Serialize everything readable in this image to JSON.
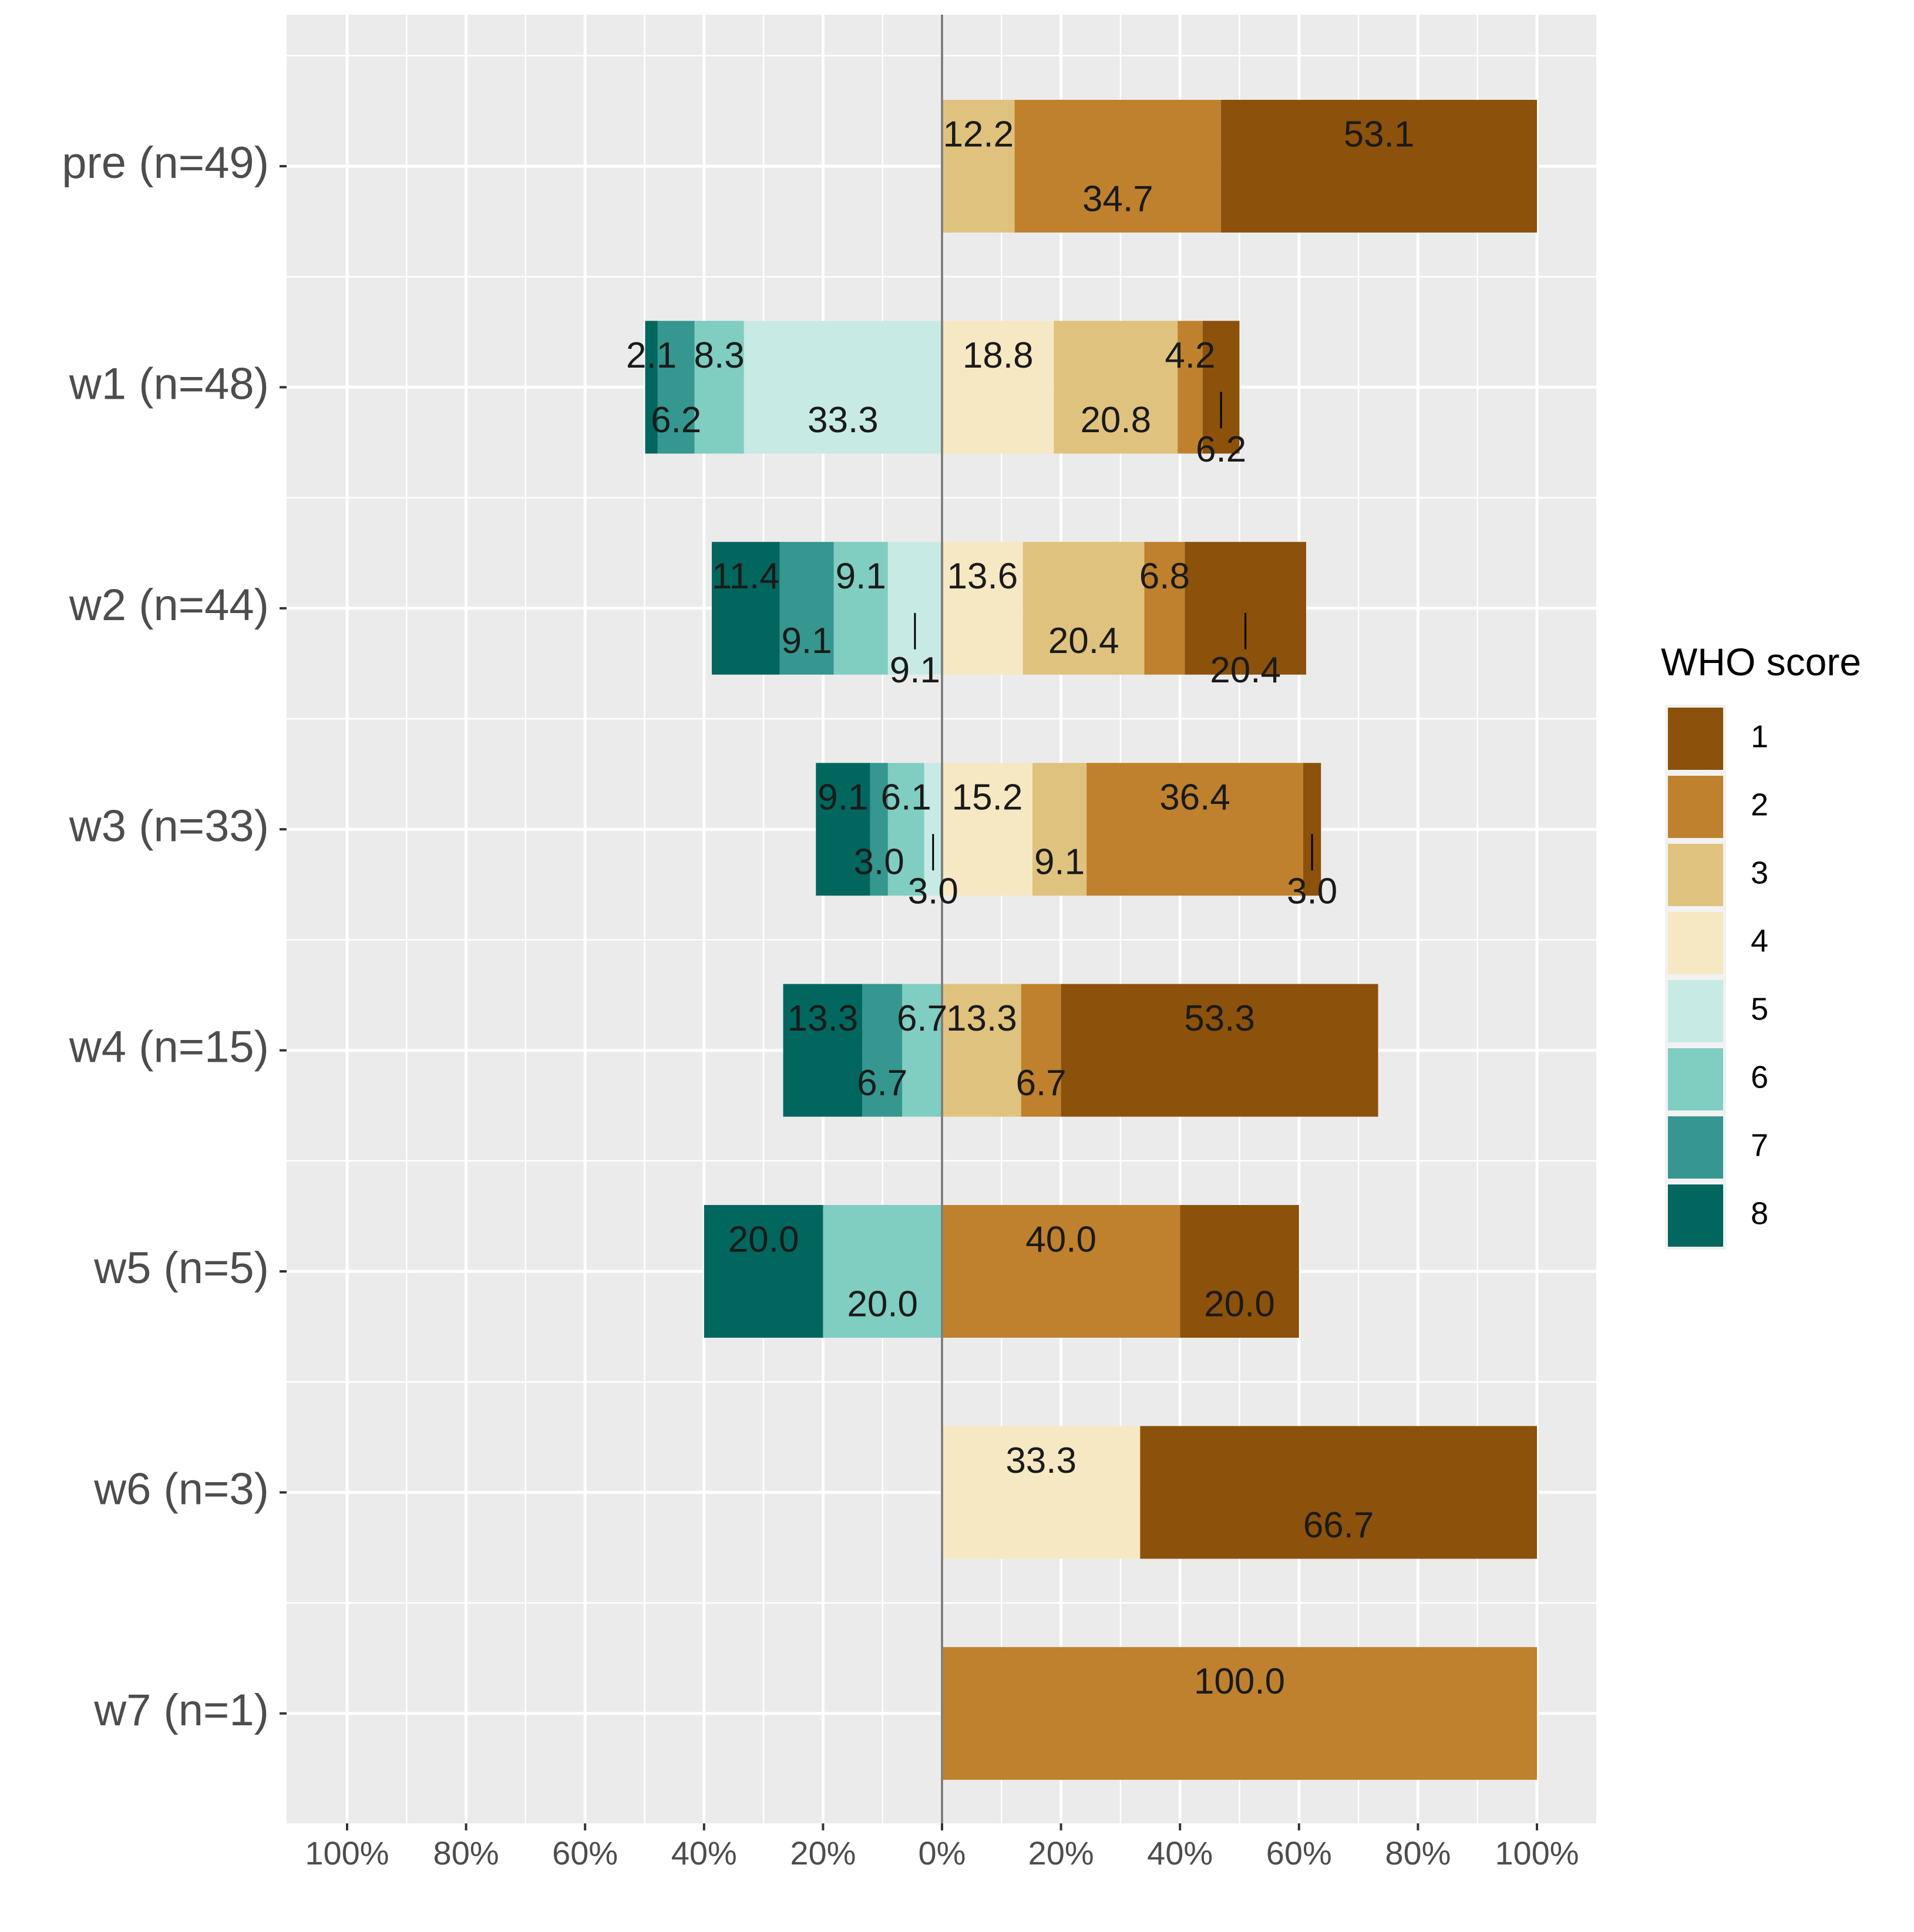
{
  "chart_data": {
    "type": "bar",
    "orientation": "horizontal",
    "stacking": "diverging",
    "title": "",
    "xlabel": "",
    "ylabel": "",
    "xlim": [
      -100,
      100
    ],
    "x_ticks": [
      -100,
      -80,
      -60,
      -40,
      -20,
      0,
      20,
      40,
      60,
      80,
      100
    ],
    "x_tick_labels": [
      "100%",
      "80%",
      "60%",
      "40%",
      "20%",
      "0%",
      "20%",
      "40%",
      "60%",
      "80%",
      "100%"
    ],
    "categories": [
      "pre (n=49)",
      "w1 (n=48)",
      "w2 (n=44)",
      "w3 (n=33)",
      "w4 (n=15)",
      "w5 (n=5)",
      "w6 (n=3)",
      "w7 (n=1)"
    ],
    "legend": {
      "title": "WHO score",
      "position": "right",
      "entries": [
        {
          "label": "1",
          "color": "#8C510A"
        },
        {
          "label": "2",
          "color": "#BF812D"
        },
        {
          "label": "3",
          "color": "#DFC27D"
        },
        {
          "label": "4",
          "color": "#F6E8C3"
        },
        {
          "label": "5",
          "color": "#C7EAE5"
        },
        {
          "label": "6",
          "color": "#80CDC1"
        },
        {
          "label": "7",
          "color": "#35978F"
        },
        {
          "label": "8",
          "color": "#01665E"
        }
      ]
    },
    "positive_order": [
      "4",
      "3",
      "2",
      "1"
    ],
    "negative_order": [
      "5",
      "6",
      "7",
      "8"
    ],
    "series": [
      {
        "name": "1",
        "values": [
          53.1,
          6.2,
          20.4,
          3.0,
          53.3,
          20.0,
          66.7,
          0
        ]
      },
      {
        "name": "2",
        "values": [
          34.7,
          4.2,
          6.8,
          36.4,
          6.7,
          40.0,
          0,
          100.0
        ]
      },
      {
        "name": "3",
        "values": [
          12.2,
          20.8,
          20.4,
          9.1,
          13.3,
          0,
          0,
          0
        ]
      },
      {
        "name": "4",
        "values": [
          0,
          18.8,
          13.6,
          15.2,
          0,
          0,
          33.3,
          0
        ]
      },
      {
        "name": "5",
        "values": [
          0,
          33.3,
          9.1,
          3.0,
          0,
          0,
          0,
          0
        ]
      },
      {
        "name": "6",
        "values": [
          0,
          8.3,
          9.1,
          6.1,
          6.7,
          20.0,
          0,
          0
        ]
      },
      {
        "name": "7",
        "values": [
          0,
          6.2,
          9.1,
          3.0,
          6.7,
          0,
          0,
          0
        ]
      },
      {
        "name": "8",
        "values": [
          0,
          2.1,
          11.4,
          9.1,
          13.3,
          20.0,
          0,
          0
        ]
      }
    ],
    "data_labels": [
      {
        "category": "pre (n=49)",
        "score": "3",
        "text": "12.2"
      },
      {
        "category": "pre (n=49)",
        "score": "2",
        "text": "34.7"
      },
      {
        "category": "pre (n=49)",
        "score": "1",
        "text": "53.1"
      },
      {
        "category": "w1 (n=48)",
        "score": "8",
        "text": "2.1"
      },
      {
        "category": "w1 (n=48)",
        "score": "7",
        "text": "6.2"
      },
      {
        "category": "w1 (n=48)",
        "score": "6",
        "text": "8.3"
      },
      {
        "category": "w1 (n=48)",
        "score": "5",
        "text": "33.3"
      },
      {
        "category": "w1 (n=48)",
        "score": "4",
        "text": "18.8"
      },
      {
        "category": "w1 (n=48)",
        "score": "3",
        "text": "20.8"
      },
      {
        "category": "w1 (n=48)",
        "score": "2",
        "text": "4.2"
      },
      {
        "category": "w1 (n=48)",
        "score": "1",
        "text": "6.2"
      },
      {
        "category": "w2 (n=44)",
        "score": "8",
        "text": "11.4"
      },
      {
        "category": "w2 (n=44)",
        "score": "7",
        "text": "9.1"
      },
      {
        "category": "w2 (n=44)",
        "score": "6",
        "text": "9.1"
      },
      {
        "category": "w2 (n=44)",
        "score": "5",
        "text": "9.1"
      },
      {
        "category": "w2 (n=44)",
        "score": "4",
        "text": "13.6"
      },
      {
        "category": "w2 (n=44)",
        "score": "3",
        "text": "20.4"
      },
      {
        "category": "w2 (n=44)",
        "score": "2",
        "text": "6.8"
      },
      {
        "category": "w2 (n=44)",
        "score": "1",
        "text": "20.4"
      },
      {
        "category": "w3 (n=33)",
        "score": "8",
        "text": "9.1"
      },
      {
        "category": "w3 (n=33)",
        "score": "7",
        "text": "3.0"
      },
      {
        "category": "w3 (n=33)",
        "score": "6",
        "text": "6.1"
      },
      {
        "category": "w3 (n=33)",
        "score": "5",
        "text": "3.0"
      },
      {
        "category": "w3 (n=33)",
        "score": "4",
        "text": "15.2"
      },
      {
        "category": "w3 (n=33)",
        "score": "3",
        "text": "9.1"
      },
      {
        "category": "w3 (n=33)",
        "score": "2",
        "text": "36.4"
      },
      {
        "category": "w3 (n=33)",
        "score": "1",
        "text": "3.0"
      },
      {
        "category": "w4 (n=15)",
        "score": "8",
        "text": "13.3"
      },
      {
        "category": "w4 (n=15)",
        "score": "7",
        "text": "6.7"
      },
      {
        "category": "w4 (n=15)",
        "score": "6",
        "text": "6.7"
      },
      {
        "category": "w4 (n=15)",
        "score": "3",
        "text": "13.3"
      },
      {
        "category": "w4 (n=15)",
        "score": "2",
        "text": "6.7"
      },
      {
        "category": "w4 (n=15)",
        "score": "1",
        "text": "53.3"
      },
      {
        "category": "w5 (n=5)",
        "score": "8",
        "text": "20.0"
      },
      {
        "category": "w5 (n=5)",
        "score": "6",
        "text": "20.0"
      },
      {
        "category": "w5 (n=5)",
        "score": "2",
        "text": "40.0"
      },
      {
        "category": "w5 (n=5)",
        "score": "1",
        "text": "20.0"
      },
      {
        "category": "w6 (n=3)",
        "score": "4",
        "text": "33.3"
      },
      {
        "category": "w6 (n=3)",
        "score": "1",
        "text": "66.7"
      },
      {
        "category": "w7 (n=1)",
        "score": "2",
        "text": "100.0"
      }
    ],
    "grid": true,
    "zero_line": true
  }
}
